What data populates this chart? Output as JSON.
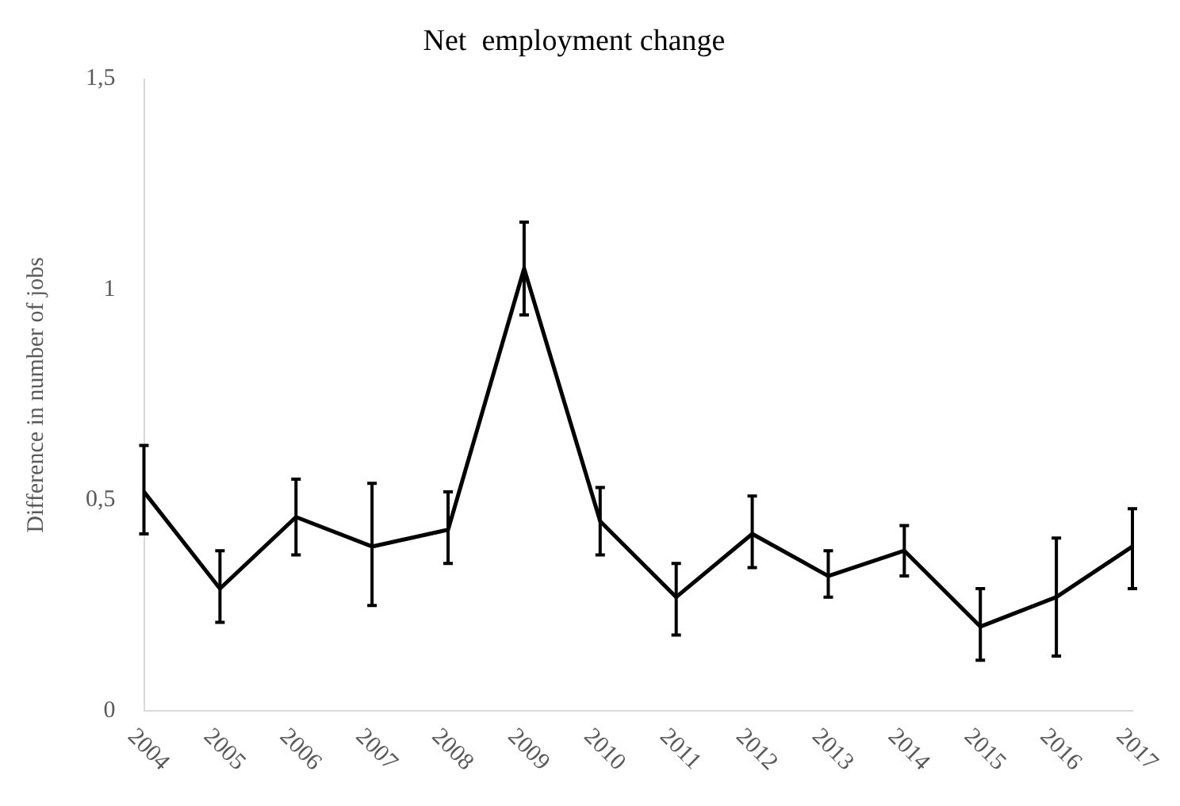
{
  "chart_data": {
    "type": "line",
    "title": "Net  employment change",
    "ylabel": "Difference in number of jobs",
    "categories": [
      "2004",
      "2005",
      "2006",
      "2007",
      "2008",
      "2009",
      "2010",
      "2011",
      "2012",
      "2013",
      "2014",
      "2015",
      "2016",
      "2017"
    ],
    "series": [
      {
        "color": "#000000",
        "values": [
          0.52,
          0.29,
          0.46,
          0.39,
          0.43,
          1.05,
          0.45,
          0.27,
          0.42,
          0.32,
          0.38,
          0.2,
          0.27,
          0.39
        ],
        "errors": [
          [
            0.42,
            0.63
          ],
          [
            0.21,
            0.38
          ],
          [
            0.37,
            0.55
          ],
          [
            0.25,
            0.54
          ],
          [
            0.35,
            0.52
          ],
          [
            0.94,
            1.16
          ],
          [
            0.37,
            0.53
          ],
          [
            0.18,
            0.35
          ],
          [
            0.34,
            0.51
          ],
          [
            0.27,
            0.38
          ],
          [
            0.32,
            0.44
          ],
          [
            0.12,
            0.29
          ],
          [
            0.13,
            0.41
          ],
          [
            0.29,
            0.48
          ]
        ]
      }
    ],
    "ylim": [
      0,
      1.5
    ],
    "yticks": [
      0,
      {
        "value": 0.5,
        "label": "0,5"
      },
      1,
      {
        "value": 1.5,
        "label": "1,5"
      }
    ],
    "grid": false,
    "legend": false,
    "marker": "none",
    "line_style": "solid"
  }
}
